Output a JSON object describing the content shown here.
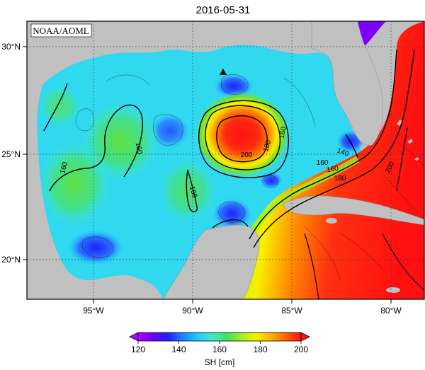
{
  "title": "2016-05-31",
  "credit": "NOAA/AOML",
  "colorbar": {
    "label": "SH [cm]",
    "ticks": [
      "120",
      "140",
      "160",
      "180",
      "200"
    ],
    "stops": [
      "#b000ff",
      "#6a00ff",
      "#2020ff",
      "#2080ff",
      "#20c8ff",
      "#40e8d0",
      "#40e060",
      "#a0f020",
      "#f8f000",
      "#ffb000",
      "#ff6000",
      "#ff1010"
    ],
    "range": [
      120,
      200
    ]
  },
  "axes": {
    "lon_ticks": [
      "95°W",
      "90°W",
      "85°W",
      "80°W"
    ],
    "lat_ticks": [
      "30°N",
      "25°N",
      "20°N"
    ]
  },
  "contour_labels": [
    "160",
    "160",
    "160",
    "160",
    "180",
    "200",
    "160",
    "140",
    "160",
    "180",
    "200"
  ],
  "marker": "buoy-triangle-icon",
  "colors": {
    "land": "#c0c0c0",
    "frame": "#000000",
    "gridline": "#555555"
  }
}
